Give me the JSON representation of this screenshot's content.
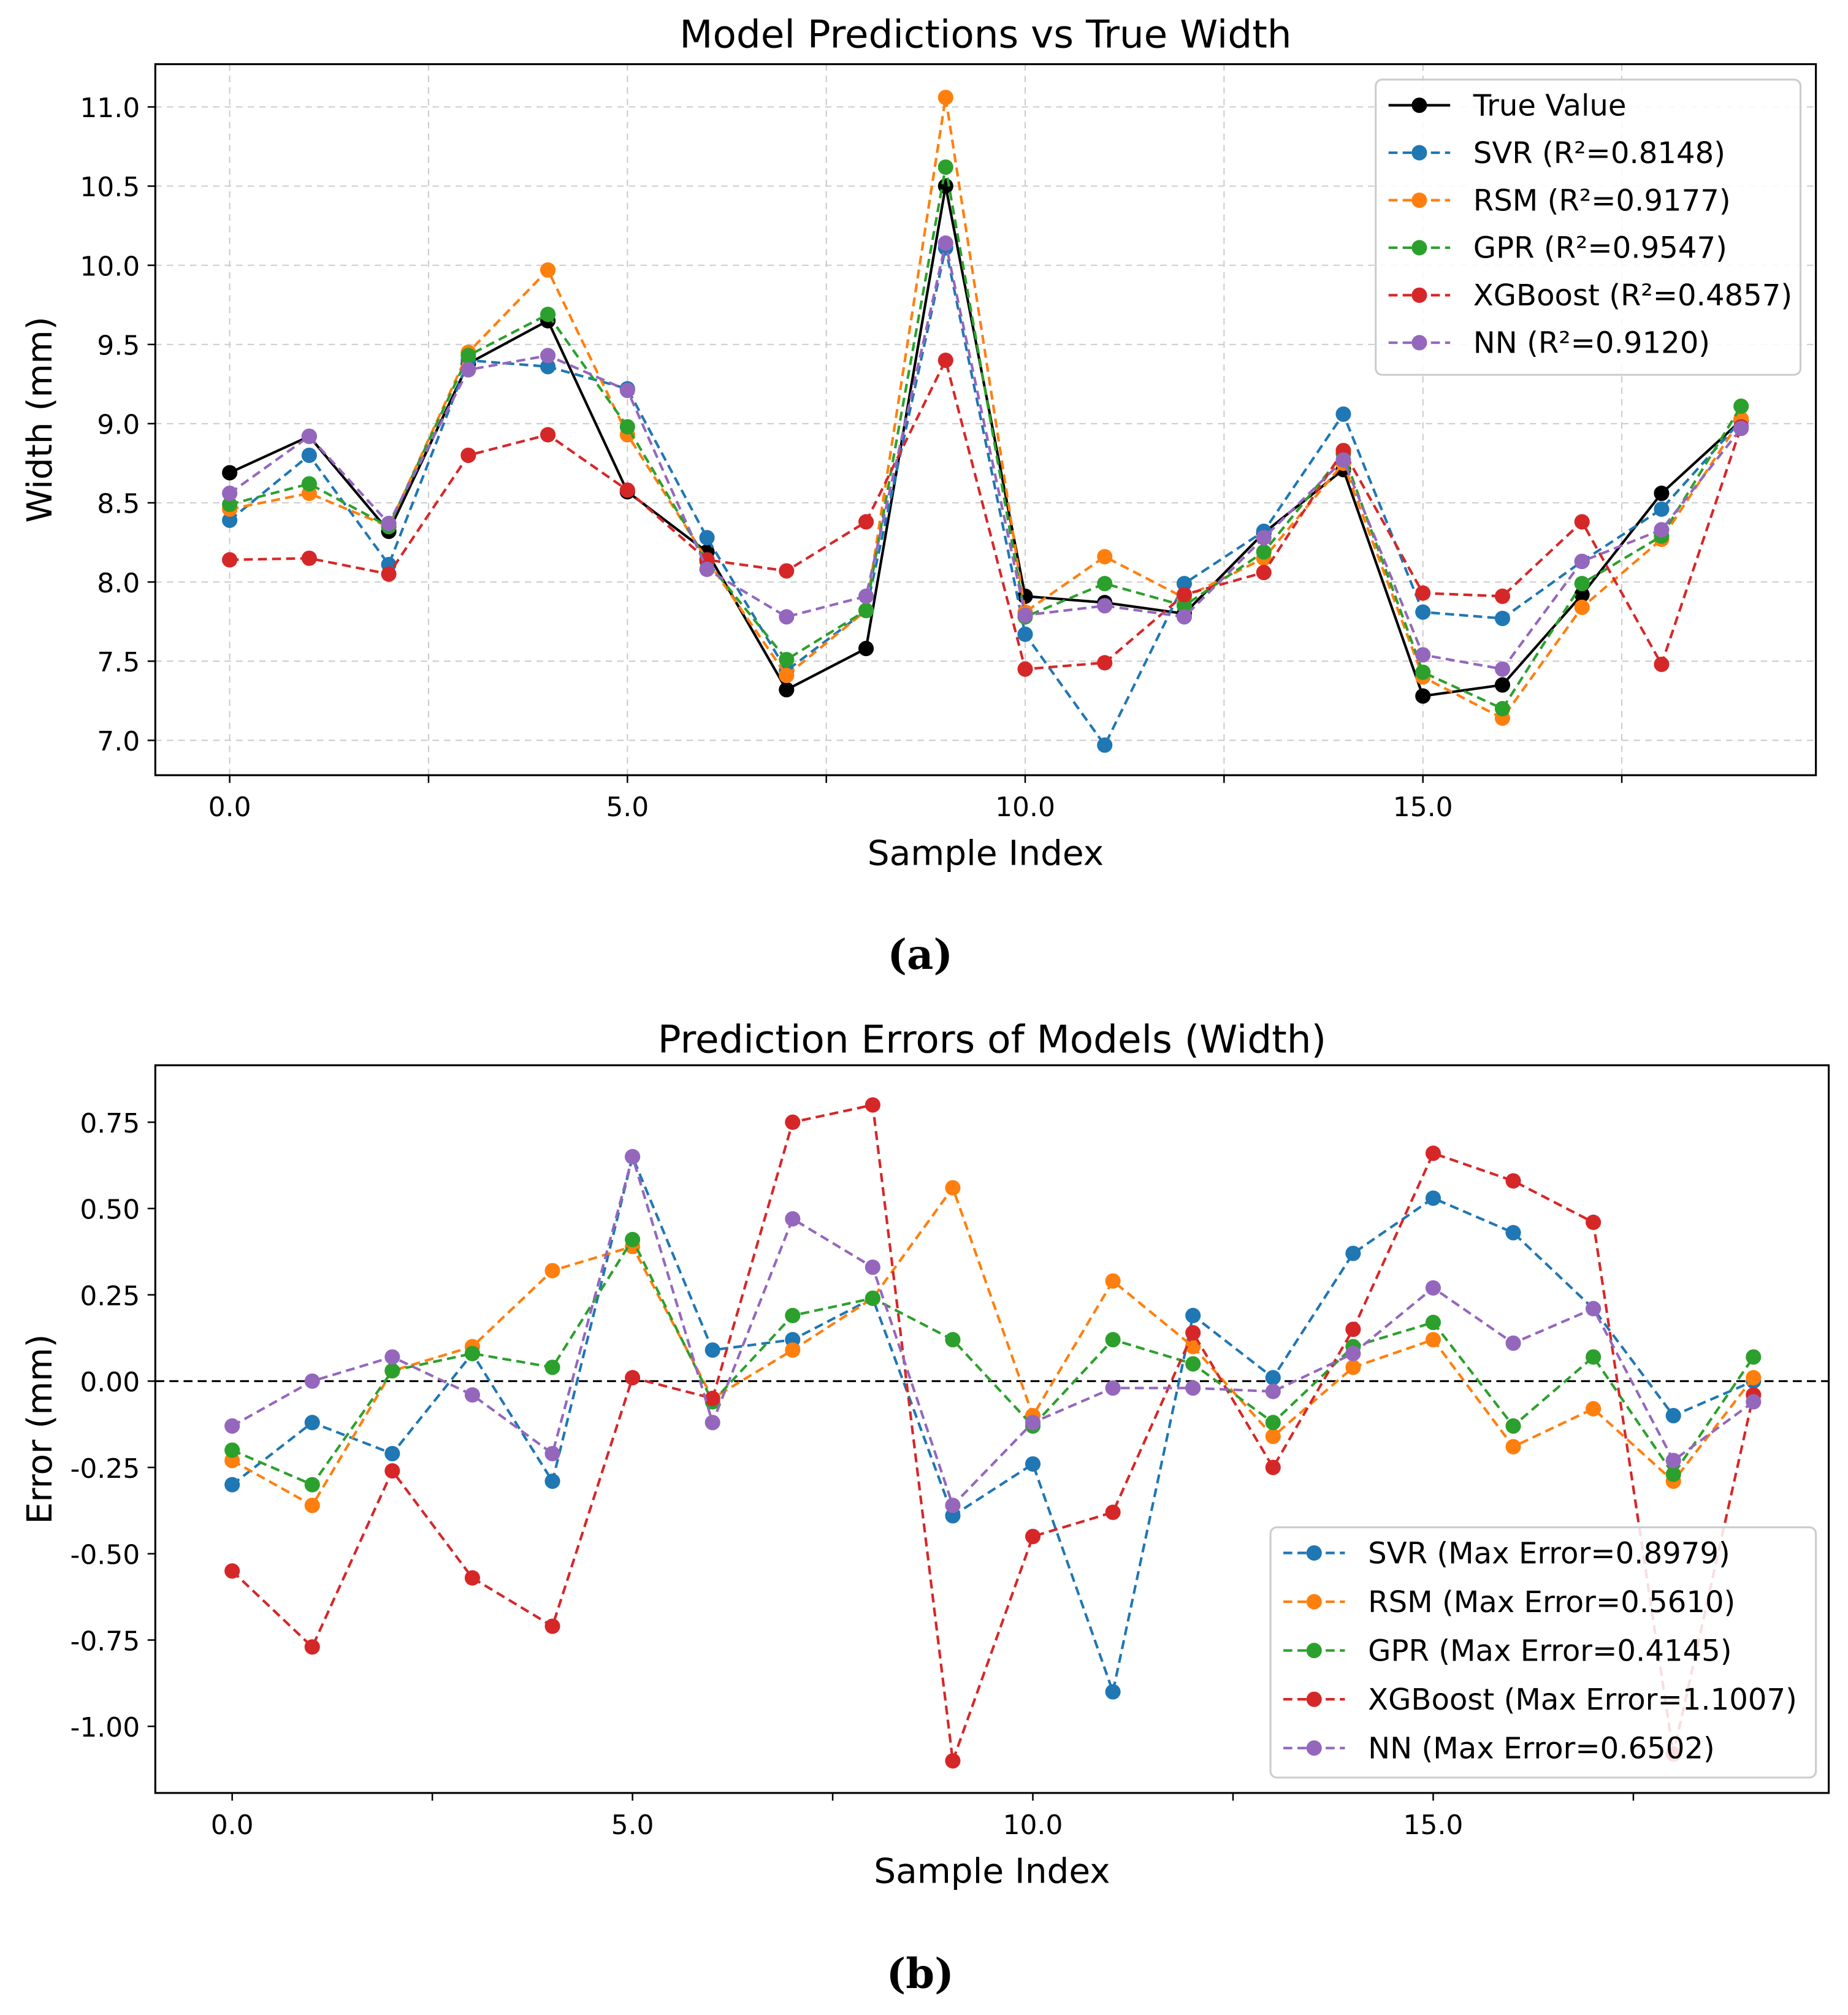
{
  "captions": {
    "a": "(a)",
    "b": "(b)"
  },
  "chart_data": [
    {
      "type": "line",
      "title": "Model Predictions vs True Width",
      "xlabel": "Sample Index",
      "ylabel": "Width (mm)",
      "xlim": [
        -0.935,
        19.94
      ],
      "ylim": [
        6.78,
        11.27
      ],
      "xticks": [
        0,
        2.5,
        5,
        7.5,
        10,
        12.5,
        15,
        17.5
      ],
      "xtick_labels": [
        "0.0",
        "",
        "5.0",
        "",
        "10.0",
        "",
        "15.0",
        ""
      ],
      "yticks": [
        7.0,
        7.5,
        8.0,
        8.5,
        9.0,
        9.5,
        10.0,
        10.5,
        11.0
      ],
      "ytick_labels": [
        "7.0",
        "7.5",
        "8.0",
        "8.5",
        "9.0",
        "9.5",
        "10.0",
        "10.5",
        "11.0"
      ],
      "grid": true,
      "legend_position": "top-right",
      "x": [
        0,
        1,
        2,
        3,
        4,
        5,
        6,
        7,
        8,
        9,
        10,
        11,
        12,
        13,
        14,
        15,
        16,
        17,
        18,
        19
      ],
      "series": [
        {
          "name": "True Value",
          "color": "#000000",
          "style": "solid",
          "values": [
            8.69,
            8.92,
            8.32,
            9.38,
            9.65,
            8.57,
            8.19,
            7.32,
            7.58,
            10.5,
            7.91,
            7.87,
            7.8,
            8.31,
            8.71,
            7.28,
            7.35,
            7.92,
            8.56,
            9.02
          ]
        },
        {
          "name": "SVR (R²=0.8148)",
          "color": "#1f77b4",
          "style": "dashed",
          "values": [
            8.39,
            8.8,
            8.11,
            9.4,
            9.36,
            9.22,
            8.28,
            7.44,
            7.82,
            10.11,
            7.67,
            6.97,
            7.99,
            8.32,
            9.06,
            7.81,
            7.77,
            8.13,
            8.46,
            9.02
          ]
        },
        {
          "name": "RSM (R²=0.9177)",
          "color": "#ff7f0e",
          "style": "dashed",
          "values": [
            8.46,
            8.56,
            8.35,
            9.45,
            9.97,
            8.93,
            8.14,
            7.41,
            7.82,
            11.06,
            7.81,
            8.16,
            7.9,
            8.15,
            8.75,
            7.4,
            7.14,
            7.84,
            8.27,
            9.03
          ]
        },
        {
          "name": "GPR (R²=0.9547)",
          "color": "#2ca02c",
          "style": "dashed",
          "values": [
            8.49,
            8.62,
            8.35,
            9.43,
            9.69,
            8.98,
            8.13,
            7.51,
            7.82,
            10.62,
            7.78,
            7.99,
            7.85,
            8.19,
            8.81,
            7.43,
            7.2,
            7.99,
            8.29,
            9.11
          ]
        },
        {
          "name": "XGBoost (R²=0.4857)",
          "color": "#d62728",
          "style": "dashed",
          "values": [
            8.14,
            8.15,
            8.05,
            8.8,
            8.93,
            8.58,
            8.14,
            8.07,
            8.38,
            9.4,
            7.45,
            7.49,
            7.92,
            8.06,
            8.83,
            7.93,
            7.91,
            8.38,
            7.48,
            8.98
          ]
        },
        {
          "name": "NN (R²=0.9120)",
          "color": "#9467bd",
          "style": "dashed",
          "values": [
            8.56,
            8.92,
            8.37,
            9.34,
            9.43,
            9.21,
            8.08,
            7.78,
            7.91,
            10.14,
            7.79,
            7.85,
            7.78,
            8.28,
            8.77,
            7.54,
            7.45,
            8.13,
            8.33,
            8.97
          ]
        }
      ]
    },
    {
      "type": "line",
      "title": "Prediction Errors of Models (Width)",
      "xlabel": "Sample Index",
      "ylabel": "Error (mm)",
      "xlim": [
        -0.96,
        19.94
      ],
      "ylim": [
        -1.193,
        0.915
      ],
      "xticks": [
        0,
        2.5,
        5,
        7.5,
        10,
        12.5,
        15,
        17.5
      ],
      "xtick_labels": [
        "0.0",
        "",
        "5.0",
        "",
        "10.0",
        "",
        "15.0",
        ""
      ],
      "yticks": [
        -1.0,
        -0.75,
        -0.5,
        -0.25,
        0.0,
        0.25,
        0.5,
        0.75
      ],
      "ytick_labels": [
        "-1.00",
        "-0.75",
        "-0.50",
        "-0.25",
        "0.00",
        "0.25",
        "0.50",
        "0.75"
      ],
      "grid": false,
      "reference_line": 0,
      "legend_position": "lower-right",
      "x": [
        0,
        1,
        2,
        3,
        4,
        5,
        6,
        7,
        8,
        9,
        10,
        11,
        12,
        13,
        14,
        15,
        16,
        17,
        18,
        19
      ],
      "series": [
        {
          "name": "SVR (Max Error=0.8979)",
          "color": "#1f77b4",
          "style": "dashed",
          "values": [
            -0.3,
            -0.12,
            -0.21,
            0.08,
            -0.29,
            0.65,
            0.09,
            0.12,
            0.24,
            -0.39,
            -0.24,
            -0.9,
            0.19,
            0.01,
            0.37,
            0.53,
            0.43,
            0.21,
            -0.1,
            0.0
          ]
        },
        {
          "name": "RSM (Max Error=0.5610)",
          "color": "#ff7f0e",
          "style": "dashed",
          "values": [
            -0.23,
            -0.36,
            0.03,
            0.1,
            0.32,
            0.39,
            -0.05,
            0.09,
            0.24,
            0.56,
            -0.1,
            0.29,
            0.1,
            -0.16,
            0.04,
            0.12,
            -0.19,
            -0.08,
            -0.29,
            0.01
          ]
        },
        {
          "name": "GPR (Max Error=0.4145)",
          "color": "#2ca02c",
          "style": "dashed",
          "values": [
            -0.2,
            -0.3,
            0.03,
            0.08,
            0.04,
            0.41,
            -0.06,
            0.19,
            0.24,
            0.12,
            -0.13,
            0.12,
            0.05,
            -0.12,
            0.1,
            0.17,
            -0.13,
            0.07,
            -0.27,
            0.07
          ]
        },
        {
          "name": "XGBoost (Max Error=1.1007)",
          "color": "#d62728",
          "style": "dashed",
          "values": [
            -0.55,
            -0.77,
            -0.26,
            -0.57,
            -0.71,
            0.01,
            -0.05,
            0.75,
            0.8,
            -1.1,
            -0.45,
            -0.38,
            0.14,
            -0.25,
            0.15,
            0.66,
            0.58,
            0.46,
            -1.08,
            -0.04
          ]
        },
        {
          "name": "NN (Max Error=0.6502)",
          "color": "#9467bd",
          "style": "dashed",
          "values": [
            -0.13,
            0.0,
            0.07,
            -0.04,
            -0.21,
            0.65,
            -0.12,
            0.47,
            0.33,
            -0.36,
            -0.12,
            -0.02,
            -0.02,
            -0.03,
            0.08,
            0.27,
            0.11,
            0.21,
            -0.23,
            -0.06
          ]
        }
      ]
    }
  ]
}
